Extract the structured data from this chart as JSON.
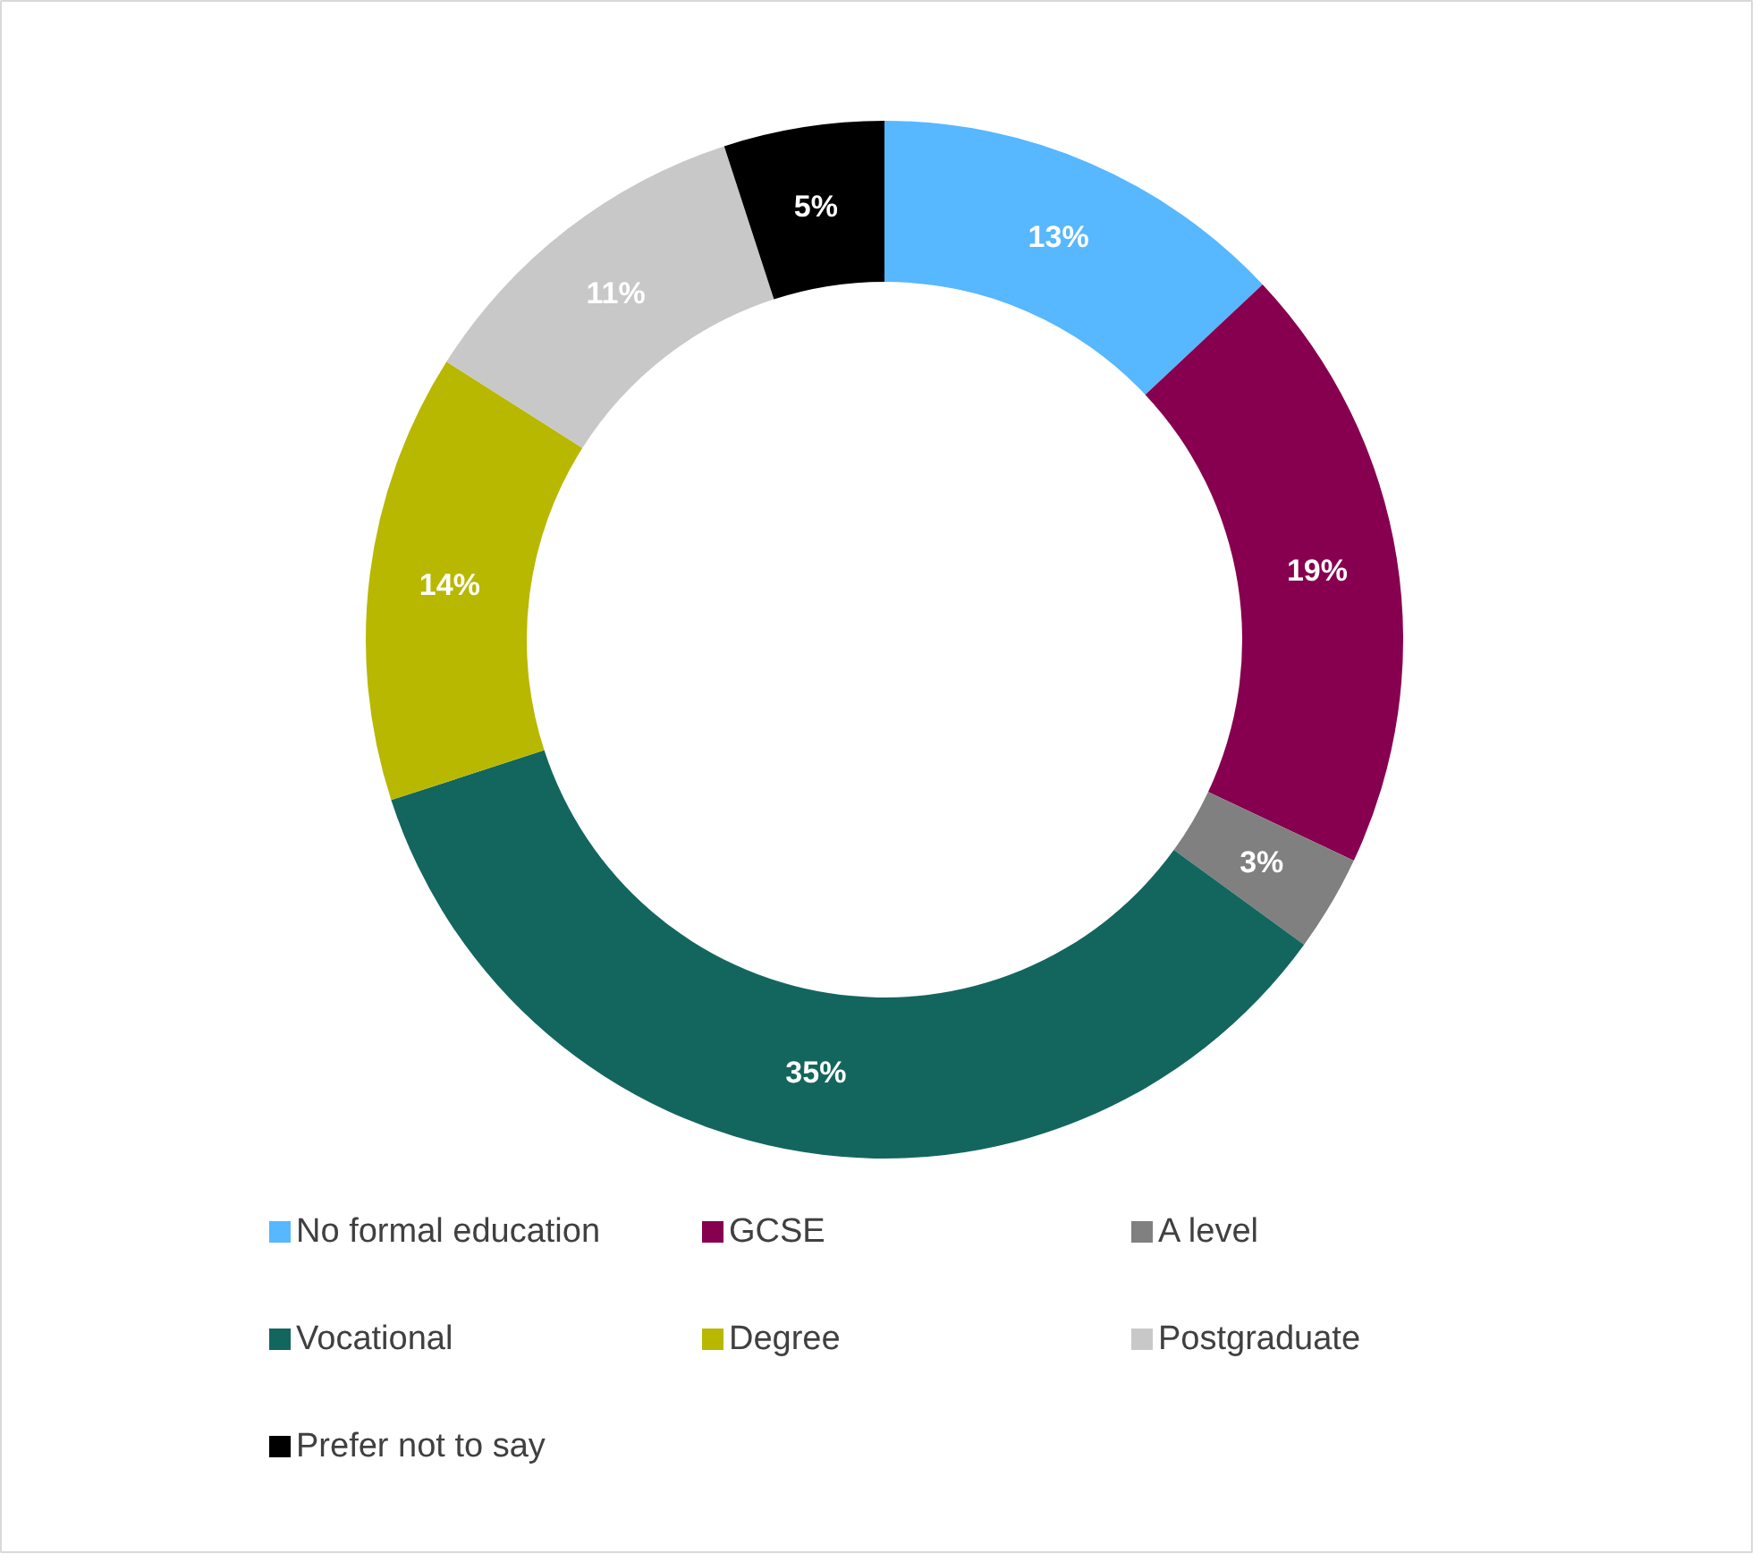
{
  "chart_data": {
    "type": "donut",
    "categories": [
      "No formal education",
      "GCSE",
      "A level",
      "Vocational",
      "Degree",
      "Postgraduate",
      "Prefer not to say"
    ],
    "values": [
      13,
      19,
      3,
      35,
      14,
      11,
      5
    ],
    "colors": [
      "#57b7ff",
      "#86004f",
      "#808080",
      "#13665e",
      "#b8b800",
      "#c8c8c8",
      "#000000"
    ],
    "value_labels": [
      "13%",
      "19%",
      "3%",
      "35%",
      "14%",
      "11%",
      "5%"
    ],
    "legend": "bottom"
  }
}
